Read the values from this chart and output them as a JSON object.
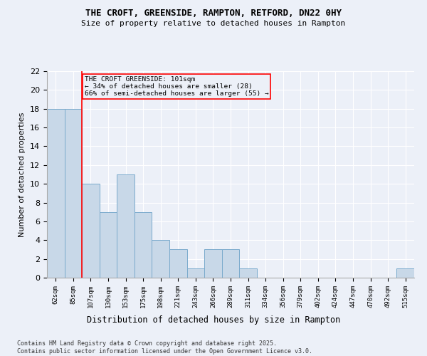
{
  "title": "THE CROFT, GREENSIDE, RAMPTON, RETFORD, DN22 0HY",
  "subtitle": "Size of property relative to detached houses in Rampton",
  "xlabel": "Distribution of detached houses by size in Rampton",
  "ylabel": "Number of detached properties",
  "categories": [
    "62sqm",
    "85sqm",
    "107sqm",
    "130sqm",
    "153sqm",
    "175sqm",
    "198sqm",
    "221sqm",
    "243sqm",
    "266sqm",
    "289sqm",
    "311sqm",
    "334sqm",
    "356sqm",
    "379sqm",
    "402sqm",
    "424sqm",
    "447sqm",
    "470sqm",
    "492sqm",
    "515sqm"
  ],
  "values": [
    18,
    18,
    10,
    7,
    11,
    7,
    4,
    3,
    1,
    3,
    3,
    1,
    0,
    0,
    0,
    0,
    0,
    0,
    0,
    0,
    1
  ],
  "bar_color": "#c8d8e8",
  "bar_edge_color": "#7aaacc",
  "annotation_title": "THE CROFT GREENSIDE: 101sqm",
  "annotation_line1": "← 34% of detached houses are smaller (28)",
  "annotation_line2": "66% of semi-detached houses are larger (55) →",
  "ylim": [
    0,
    22
  ],
  "yticks": [
    0,
    2,
    4,
    6,
    8,
    10,
    12,
    14,
    16,
    18,
    20,
    22
  ],
  "background_color": "#ecf0f8",
  "grid_color": "#ffffff",
  "footer_line1": "Contains HM Land Registry data © Crown copyright and database right 2025.",
  "footer_line2": "Contains public sector information licensed under the Open Government Licence v3.0."
}
